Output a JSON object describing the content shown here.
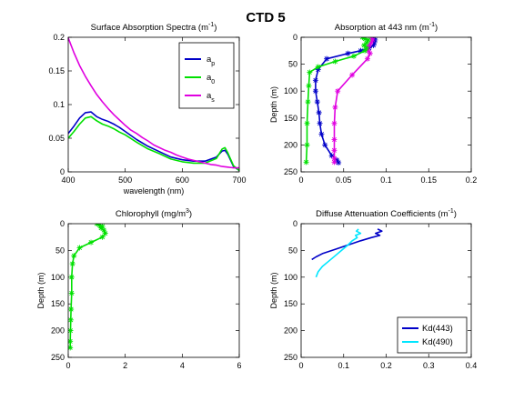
{
  "figure_title": "CTD 5",
  "chart_data": [
    {
      "type": "line",
      "title": "Surface Absorption Spectra (m",
      "title_sup": "-1",
      "title_tail": ")",
      "xlabel": "wavelength (nm)",
      "ylabel": "",
      "xlim": [
        400,
        700
      ],
      "ylim": [
        0,
        0.2
      ],
      "reverse_y": false,
      "xticks": [
        400,
        500,
        600,
        700
      ],
      "yticks": [
        0,
        0.05,
        0.1,
        0.15,
        0.2
      ],
      "xticklabels": [
        "400",
        "500",
        "600",
        "700"
      ],
      "yticklabels": [
        "0",
        "0.05",
        "0.1",
        "0.15",
        "0.2"
      ],
      "legend": "upper-right-boxed",
      "series": [
        {
          "name": "a",
          "name_sub": "p",
          "color": "#0000c8",
          "marker": false,
          "x": [
            400,
            410,
            420,
            430,
            440,
            450,
            460,
            470,
            480,
            490,
            500,
            520,
            540,
            560,
            580,
            600,
            620,
            640,
            660,
            670,
            675,
            680,
            690,
            700
          ],
          "y": [
            0.057,
            0.068,
            0.08,
            0.088,
            0.089,
            0.082,
            0.078,
            0.075,
            0.071,
            0.066,
            0.06,
            0.048,
            0.038,
            0.03,
            0.022,
            0.018,
            0.016,
            0.016,
            0.022,
            0.031,
            0.032,
            0.026,
            0.008,
            0.002
          ]
        },
        {
          "name": "a",
          "name_sub": "0",
          "color": "#00e000",
          "marker": false,
          "x": [
            400,
            410,
            420,
            430,
            440,
            450,
            460,
            470,
            480,
            490,
            500,
            520,
            540,
            560,
            580,
            600,
            620,
            640,
            660,
            670,
            675,
            680,
            690,
            700
          ],
          "y": [
            0.05,
            0.06,
            0.071,
            0.08,
            0.082,
            0.076,
            0.071,
            0.068,
            0.064,
            0.059,
            0.055,
            0.044,
            0.034,
            0.027,
            0.019,
            0.015,
            0.013,
            0.013,
            0.02,
            0.034,
            0.036,
            0.028,
            0.009,
            0.002
          ]
        },
        {
          "name": "a",
          "name_sub": "s",
          "color": "#e000e0",
          "marker": false,
          "x": [
            400,
            410,
            420,
            430,
            440,
            450,
            460,
            470,
            480,
            490,
            500,
            510,
            520,
            530,
            540,
            550,
            560,
            570,
            580,
            590,
            600,
            610,
            620,
            630,
            640,
            650,
            660,
            670,
            680,
            690,
            700
          ],
          "y": [
            0.199,
            0.177,
            0.158,
            0.142,
            0.128,
            0.115,
            0.104,
            0.094,
            0.085,
            0.077,
            0.069,
            0.062,
            0.057,
            0.051,
            0.046,
            0.04,
            0.036,
            0.032,
            0.029,
            0.025,
            0.022,
            0.019,
            0.017,
            0.015,
            0.013,
            0.011,
            0.01,
            0.008,
            0.007,
            0.006,
            0.006
          ]
        }
      ]
    },
    {
      "type": "line",
      "title": "Absorption at 443 nm (m",
      "title_sup": "-1",
      "title_tail": ")",
      "xlabel": "",
      "ylabel": "Depth (m)",
      "xlim": [
        0,
        0.2
      ],
      "ylim": [
        0,
        250
      ],
      "reverse_y": true,
      "xticks": [
        0,
        0.05,
        0.1,
        0.15,
        0.2
      ],
      "yticks": [
        0,
        50,
        100,
        150,
        200,
        250
      ],
      "xticklabels": [
        "0",
        "0.05",
        "0.1",
        "0.15",
        "0.2"
      ],
      "yticklabels": [
        "0",
        "50",
        "100",
        "150",
        "200",
        "250"
      ],
      "series": [
        {
          "name": "",
          "color": "#0000c8",
          "marker": true,
          "x": [
            0.085,
            0.087,
            0.086,
            0.085,
            0.08,
            0.07,
            0.055,
            0.03,
            0.02,
            0.017,
            0.017,
            0.019,
            0.021,
            0.022,
            0.024,
            0.028,
            0.036,
            0.042,
            0.044
          ],
          "y": [
            2,
            5,
            10,
            15,
            20,
            25,
            30,
            40,
            60,
            80,
            100,
            120,
            140,
            160,
            180,
            200,
            220,
            228,
            233
          ]
        },
        {
          "name": "",
          "color": "#e000e0",
          "marker": true,
          "x": [
            0.083,
            0.084,
            0.082,
            0.08,
            0.078,
            0.079,
            0.081,
            0.078,
            0.06,
            0.043,
            0.04,
            0.039,
            0.039,
            0.039,
            0.039,
            0.039
          ],
          "y": [
            2,
            5,
            10,
            15,
            20,
            25,
            30,
            40,
            70,
            100,
            130,
            160,
            190,
            210,
            225,
            232
          ]
        },
        {
          "name": "",
          "color": "#00e000",
          "marker": true,
          "x": [
            0.072,
            0.075,
            0.079,
            0.077,
            0.074,
            0.077,
            0.075,
            0.062,
            0.04,
            0.02,
            0.01,
            0.009,
            0.008,
            0.007,
            0.007,
            0.006
          ],
          "y": [
            0,
            3,
            5,
            10,
            15,
            20,
            25,
            35,
            45,
            55,
            65,
            90,
            120,
            160,
            200,
            232
          ]
        }
      ]
    },
    {
      "type": "line",
      "title": "Chlorophyll (mg/m",
      "title_sup": "3",
      "title_tail": ")",
      "xlabel": "",
      "ylabel": "Depth (m)",
      "xlim": [
        0,
        6
      ],
      "ylim": [
        0,
        250
      ],
      "reverse_y": true,
      "xticks": [
        0,
        2,
        4,
        6
      ],
      "yticks": [
        0,
        50,
        100,
        150,
        200,
        250
      ],
      "xticklabels": [
        "0",
        "2",
        "4",
        "6"
      ],
      "yticklabels": [
        "0",
        "50",
        "100",
        "150",
        "200",
        "250"
      ],
      "series": [
        {
          "name": "",
          "color": "#00e000",
          "marker": true,
          "x": [
            1.0,
            1.1,
            1.2,
            1.15,
            1.25,
            1.3,
            1.2,
            0.8,
            0.4,
            0.2,
            0.15,
            0.12,
            0.12,
            0.1,
            0.09,
            0.08,
            0.07,
            0.07
          ],
          "y": [
            0,
            3,
            5,
            8,
            12,
            18,
            25,
            35,
            45,
            60,
            75,
            100,
            130,
            160,
            180,
            200,
            220,
            232
          ]
        }
      ]
    },
    {
      "type": "line",
      "title": "Diffuse Attenuation Coefficients (m",
      "title_sup": "-1",
      "title_tail": ")",
      "xlabel": "",
      "ylabel": "Depth (m)",
      "xlim": [
        0,
        0.4
      ],
      "ylim": [
        0,
        250
      ],
      "reverse_y": true,
      "xticks": [
        0,
        0.1,
        0.2,
        0.3,
        0.4
      ],
      "yticks": [
        0,
        50,
        100,
        150,
        200,
        250
      ],
      "xticklabels": [
        "0",
        "0.1",
        "0.2",
        "0.3",
        "0.4"
      ],
      "yticklabels": [
        "0",
        "50",
        "100",
        "150",
        "200",
        "250"
      ],
      "legend": "lower-right-boxed",
      "series": [
        {
          "name": "Kd(443)",
          "color": "#0000c8",
          "marker": false,
          "x": [
            0.18,
            0.19,
            0.175,
            0.185,
            0.165,
            0.14,
            0.11,
            0.08,
            0.05,
            0.035,
            0.025
          ],
          "y": [
            10,
            14,
            18,
            22,
            26,
            32,
            40,
            48,
            56,
            62,
            67
          ]
        },
        {
          "name": "Kd(490)",
          "color": "#00e6ff",
          "marker": false,
          "x": [
            0.135,
            0.13,
            0.14,
            0.128,
            0.132,
            0.12,
            0.11,
            0.095,
            0.08,
            0.065,
            0.05,
            0.04,
            0.035
          ],
          "y": [
            10,
            14,
            18,
            22,
            26,
            32,
            40,
            50,
            60,
            70,
            80,
            90,
            100
          ]
        }
      ]
    }
  ]
}
